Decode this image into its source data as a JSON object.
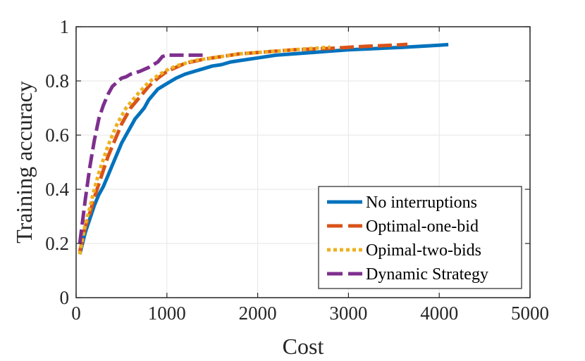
{
  "chart_data": {
    "type": "line",
    "title": "",
    "xlabel": "Cost",
    "ylabel": "Training accuracy",
    "xlim": [
      0,
      5000
    ],
    "ylim": [
      0,
      1
    ],
    "grid": true,
    "legend_position": "bottom-right",
    "x_ticks": [
      {
        "value": 0,
        "label": "0"
      },
      {
        "value": 1000,
        "label": "1000"
      },
      {
        "value": 2000,
        "label": "2000"
      },
      {
        "value": 3000,
        "label": "3000"
      },
      {
        "value": 4000,
        "label": "4000"
      },
      {
        "value": 5000,
        "label": "5000"
      }
    ],
    "y_ticks": [
      {
        "value": 0,
        "label": "0"
      },
      {
        "value": 0.2,
        "label": "0.2"
      },
      {
        "value": 0.4,
        "label": "0.4"
      },
      {
        "value": 0.6,
        "label": "0.6"
      },
      {
        "value": 0.8,
        "label": "0.8"
      },
      {
        "value": 1,
        "label": "1"
      }
    ],
    "series": [
      {
        "name": "No interruptions",
        "color": "#0072BD",
        "style": "solid",
        "x": [
          40,
          100,
          150,
          200,
          250,
          300,
          350,
          400,
          450,
          500,
          550,
          600,
          650,
          700,
          750,
          800,
          850,
          900,
          950,
          1000,
          1100,
          1200,
          1300,
          1400,
          1500,
          1600,
          1700,
          1800,
          2000,
          2200,
          2400,
          2600,
          2800,
          3000,
          3200,
          3400,
          3600,
          3800,
          4000,
          4100
        ],
        "y": [
          0.16,
          0.24,
          0.29,
          0.34,
          0.38,
          0.41,
          0.45,
          0.49,
          0.53,
          0.57,
          0.6,
          0.63,
          0.66,
          0.68,
          0.7,
          0.73,
          0.75,
          0.77,
          0.78,
          0.79,
          0.81,
          0.825,
          0.835,
          0.845,
          0.855,
          0.86,
          0.87,
          0.875,
          0.885,
          0.895,
          0.9,
          0.905,
          0.91,
          0.915,
          0.918,
          0.921,
          0.924,
          0.928,
          0.932,
          0.934
        ]
      },
      {
        "name": "Optimal-one-bid",
        "color": "#D95319",
        "style": "dashed",
        "x": [
          40,
          100,
          150,
          200,
          250,
          300,
          350,
          400,
          450,
          500,
          550,
          600,
          700,
          800,
          900,
          1000,
          1100,
          1200,
          1400,
          1600,
          1800,
          2000,
          2400,
          2800,
          3200,
          3500,
          3650
        ],
        "y": [
          0.17,
          0.26,
          0.31,
          0.37,
          0.42,
          0.47,
          0.52,
          0.56,
          0.6,
          0.64,
          0.67,
          0.7,
          0.74,
          0.78,
          0.81,
          0.835,
          0.85,
          0.865,
          0.88,
          0.89,
          0.9,
          0.905,
          0.915,
          0.92,
          0.928,
          0.932,
          0.935
        ]
      },
      {
        "name": "Opimal-two-bids",
        "color": "#EDB120",
        "style": "dotted",
        "x": [
          40,
          100,
          150,
          200,
          250,
          300,
          350,
          400,
          450,
          500,
          550,
          600,
          700,
          800,
          900,
          1000,
          1100,
          1200,
          1300,
          1400,
          1600,
          1800,
          2000,
          2400,
          2800
        ],
        "y": [
          0.16,
          0.27,
          0.33,
          0.4,
          0.46,
          0.51,
          0.56,
          0.6,
          0.64,
          0.67,
          0.7,
          0.72,
          0.76,
          0.795,
          0.82,
          0.84,
          0.855,
          0.865,
          0.875,
          0.88,
          0.89,
          0.9,
          0.905,
          0.915,
          0.925
        ]
      },
      {
        "name": "Dynamic Strategy",
        "color": "#7E2F8E",
        "style": "dashed",
        "x": [
          40,
          100,
          150,
          200,
          250,
          300,
          350,
          400,
          450,
          500,
          550,
          600,
          700,
          800,
          900,
          950,
          1000,
          1100,
          1200,
          1300,
          1400
        ],
        "y": [
          0.2,
          0.36,
          0.48,
          0.58,
          0.66,
          0.71,
          0.75,
          0.78,
          0.795,
          0.81,
          0.815,
          0.825,
          0.835,
          0.85,
          0.87,
          0.89,
          0.895,
          0.895,
          0.895,
          0.895,
          0.895
        ]
      }
    ]
  }
}
